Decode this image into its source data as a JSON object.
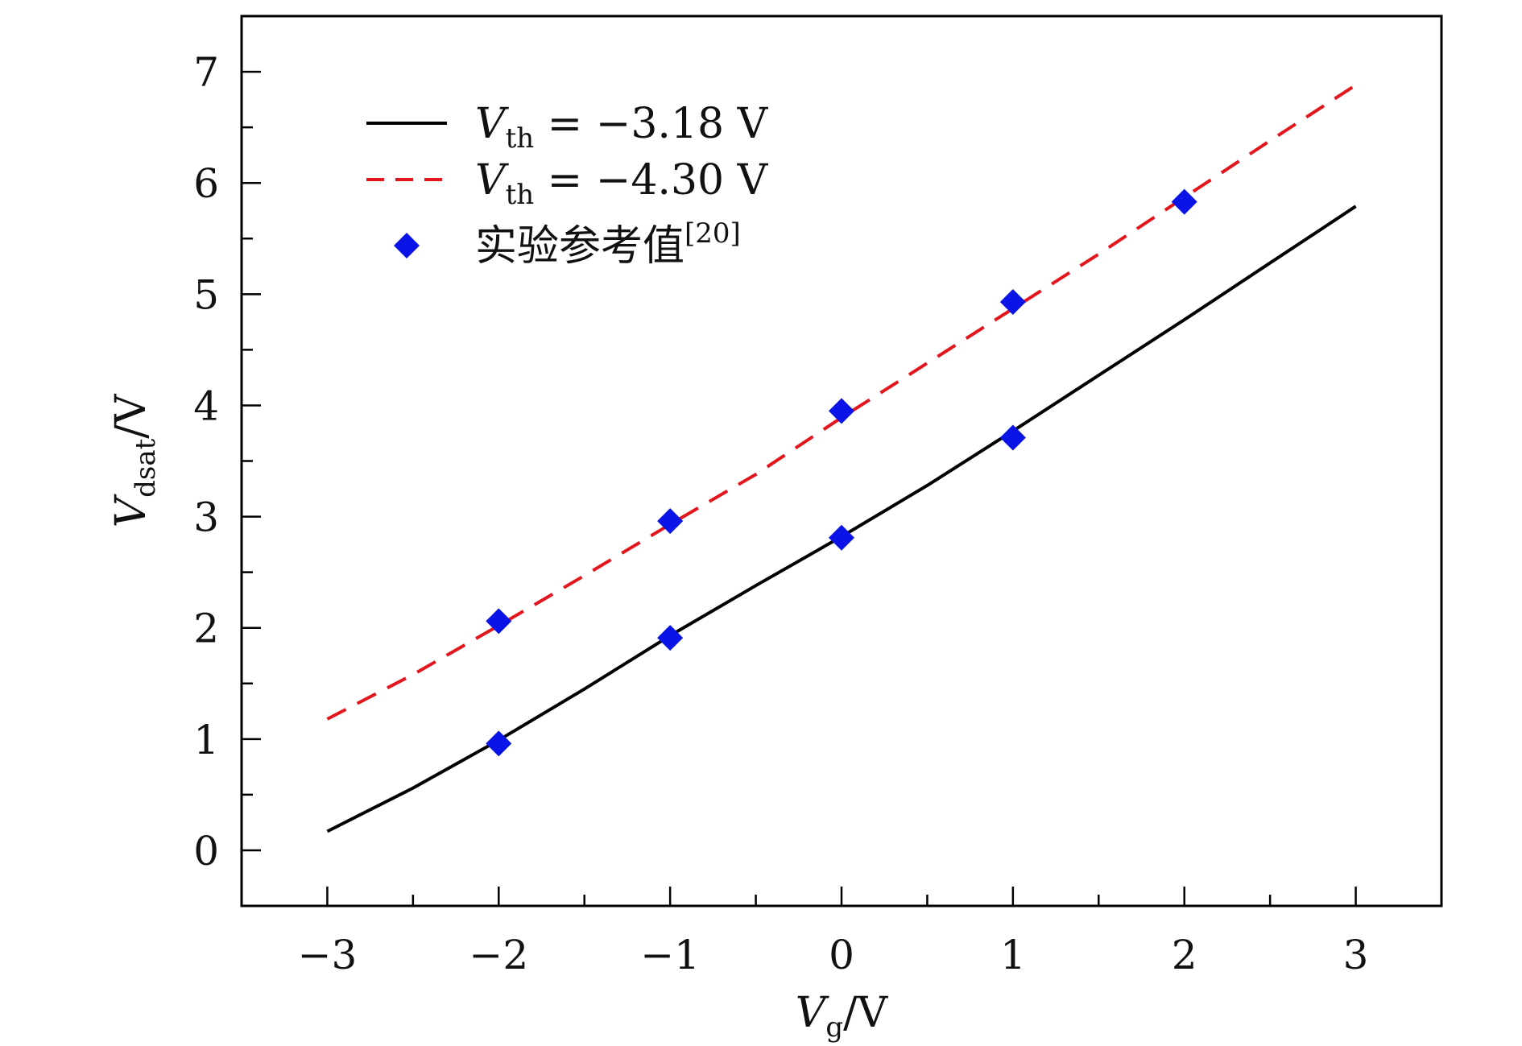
{
  "chart_data": {
    "type": "line",
    "xlabel": {
      "main": "V",
      "sub": "g",
      "unit": "/V"
    },
    "ylabel": {
      "main": "V",
      "sub": "dsat",
      "unit": "/V"
    },
    "xlim": [
      -3.5,
      3.5
    ],
    "ylim": [
      -0.5,
      7.5
    ],
    "x_ticks": [
      -3,
      -2,
      -1,
      0,
      1,
      2,
      3
    ],
    "x_tick_labels": [
      "−3",
      "−2",
      "−1",
      "0",
      "1",
      "2",
      "3"
    ],
    "y_ticks": [
      0,
      1,
      2,
      3,
      4,
      5,
      6,
      7
    ],
    "y_tick_labels": [
      "0",
      "1",
      "2",
      "3",
      "4",
      "5",
      "6",
      "7"
    ],
    "grid": false,
    "legend_position": "top-left",
    "series": [
      {
        "name": "V_th = −3.18 V",
        "legend": {
          "main": "V",
          "sub": "th",
          "rest": " = −3.18 V"
        },
        "style": "solid",
        "color": "#000000",
        "x": [
          -3,
          -2.5,
          -2,
          -1.5,
          -1,
          -0.5,
          0,
          0.5,
          1,
          1.5,
          2,
          2.5,
          3
        ],
        "y": [
          0.17,
          0.56,
          0.99,
          1.45,
          1.93,
          2.38,
          2.82,
          3.28,
          3.77,
          4.27,
          4.77,
          5.28,
          5.79
        ]
      },
      {
        "name": "V_th = −4.30 V",
        "legend": {
          "main": "V",
          "sub": "th",
          "rest": " = −4.30 V"
        },
        "style": "dashed",
        "color": "#e3161d",
        "x": [
          -3,
          -2.5,
          -2,
          -1.5,
          -1,
          -0.5,
          0,
          0.5,
          1,
          1.5,
          2,
          2.5,
          3
        ],
        "y": [
          1.18,
          1.58,
          2.02,
          2.47,
          2.93,
          3.38,
          3.89,
          4.38,
          4.87,
          5.36,
          5.87,
          6.38,
          6.88
        ]
      },
      {
        "name": "实验参考值[20]",
        "legend": {
          "main": "实验参考值",
          "sup": "[20]"
        },
        "style": "marker-diamond",
        "color": "#0a14e6",
        "x": [
          -2,
          -2,
          -1,
          -1,
          0,
          0,
          1,
          1,
          2
        ],
        "y": [
          2.06,
          0.96,
          2.96,
          1.91,
          3.95,
          2.81,
          4.93,
          3.71,
          5.83
        ]
      }
    ]
  }
}
